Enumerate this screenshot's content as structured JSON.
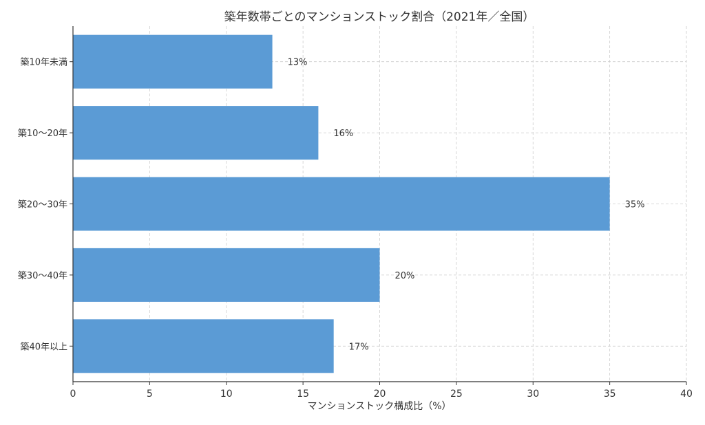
{
  "chart_data": {
    "type": "bar",
    "orientation": "horizontal",
    "title": "築年数帯ごとのマンションストック割合（2021年／全国）",
    "xlabel": "マンションストック構成比（%）",
    "ylabel": "",
    "categories": [
      "築10年未満",
      "築10〜20年",
      "築20〜30年",
      "築30〜40年",
      "築40年以上"
    ],
    "values": [
      13,
      16,
      35,
      20,
      17
    ],
    "data_labels": [
      "13%",
      "16%",
      "35%",
      "20%",
      "17%"
    ],
    "xlim": [
      0,
      40
    ],
    "xticks": [
      0,
      5,
      10,
      15,
      20,
      25,
      30,
      35,
      40
    ],
    "xtick_labels": [
      "0",
      "5",
      "10",
      "15",
      "20",
      "25",
      "30",
      "35",
      "40"
    ],
    "grid": true,
    "bar_color": "#5b9bd5"
  }
}
